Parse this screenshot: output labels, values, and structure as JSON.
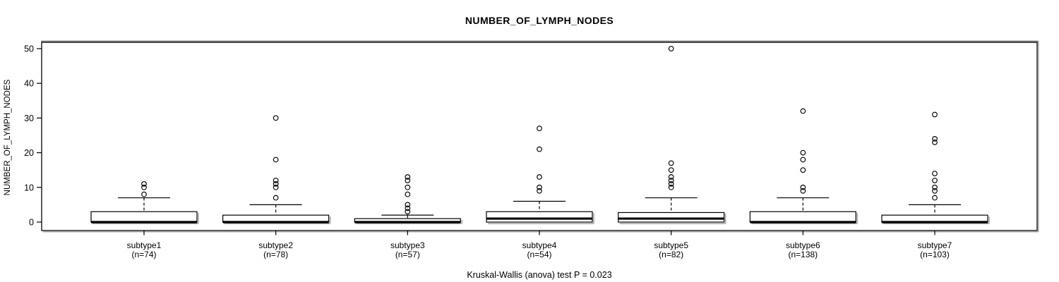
{
  "colors": {
    "foreground": "#000000",
    "background": "#ffffff",
    "box_fill": "#ffffff",
    "shadow": "#a8a8a8",
    "frame_shade": "#8f8f8f"
  },
  "chart_data": {
    "type": "boxplot",
    "title": "NUMBER_OF_LYMPH_NODES",
    "ylabel": "NUMBER_OF_LYMPH_NODES",
    "xlabel": "",
    "caption": "Kruskal-Wallis (anova) test P = 0.023",
    "ylim": [
      0,
      50
    ],
    "yticks": [
      0,
      10,
      20,
      30,
      40,
      50
    ],
    "grid": false,
    "legend": "none",
    "groups": [
      {
        "label": "subtype1",
        "n_label": "(n=74)",
        "n": 74,
        "min": 0,
        "q1": 0,
        "median": 0,
        "q3": 3,
        "whisker_low": 0,
        "whisker_high": 7,
        "outliers": [
          8,
          10,
          11
        ]
      },
      {
        "label": "subtype2",
        "n_label": "(n=78)",
        "n": 78,
        "min": 0,
        "q1": 0,
        "median": 0,
        "q3": 2,
        "whisker_low": 0,
        "whisker_high": 5,
        "outliers": [
          7,
          10,
          11,
          12,
          18,
          30
        ]
      },
      {
        "label": "subtype3",
        "n_label": "(n=57)",
        "n": 57,
        "min": 0,
        "q1": 0,
        "median": 0,
        "q3": 1,
        "whisker_low": 0,
        "whisker_high": 2,
        "outliers": [
          3,
          4,
          5,
          8,
          10,
          12,
          13
        ]
      },
      {
        "label": "subtype4",
        "n_label": "(n=54)",
        "n": 54,
        "min": 0,
        "q1": 0,
        "median": 1,
        "q3": 3,
        "whisker_low": 0,
        "whisker_high": 6,
        "outliers": [
          9,
          10,
          13,
          21,
          27
        ]
      },
      {
        "label": "subtype5",
        "n_label": "(n=82)",
        "n": 82,
        "min": 0,
        "q1": 0,
        "median": 1,
        "q3": 2.75,
        "whisker_low": 0,
        "whisker_high": 7,
        "outliers": [
          10,
          11,
          12,
          13,
          15,
          17,
          50
        ]
      },
      {
        "label": "subtype6",
        "n_label": "(n=138)",
        "n": 138,
        "min": 0,
        "q1": 0,
        "median": 0,
        "q3": 3,
        "whisker_low": 0,
        "whisker_high": 7,
        "outliers": [
          9,
          10,
          15,
          18,
          20,
          32
        ]
      },
      {
        "label": "subtype7",
        "n_label": "(n=103)",
        "n": 103,
        "min": 0,
        "q1": 0,
        "median": 0,
        "q3": 2,
        "whisker_low": 0,
        "whisker_high": 5,
        "outliers": [
          7,
          9,
          10,
          12,
          14,
          23,
          24,
          31
        ]
      }
    ]
  }
}
